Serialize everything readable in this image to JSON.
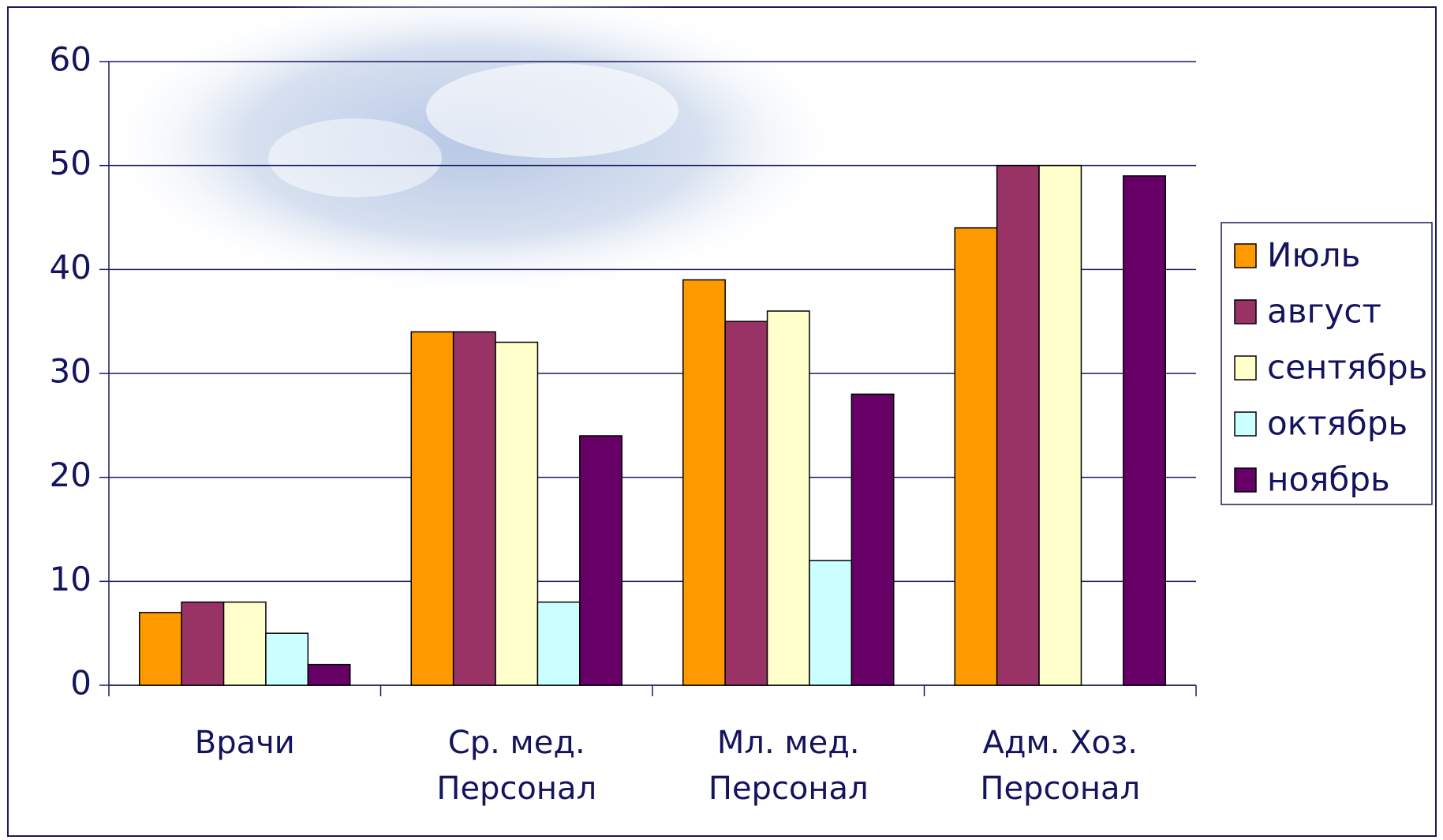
{
  "chart_data": {
    "type": "bar",
    "categories": [
      "Врачи",
      "Ср. мед. Персонал",
      "Мл. мед. Персонал",
      "Адм. Хоз. Персонал"
    ],
    "series": [
      {
        "name": "Июль",
        "color": "#ff9900",
        "values": [
          7,
          34,
          39,
          44
        ]
      },
      {
        "name": "август",
        "color": "#993366",
        "values": [
          8,
          34,
          35,
          50
        ]
      },
      {
        "name": "сентябрь",
        "color": "#ffffcc",
        "values": [
          8,
          33,
          36,
          50
        ]
      },
      {
        "name": "октябрь",
        "color": "#ccffff",
        "values": [
          5,
          8,
          12,
          null
        ]
      },
      {
        "name": "ноябрь",
        "color": "#660066",
        "values": [
          2,
          24,
          28,
          49
        ]
      }
    ],
    "ylim": [
      0,
      60
    ],
    "yticks": [
      0,
      10,
      20,
      30,
      40,
      50,
      60
    ],
    "grid": true,
    "legend": "right"
  }
}
